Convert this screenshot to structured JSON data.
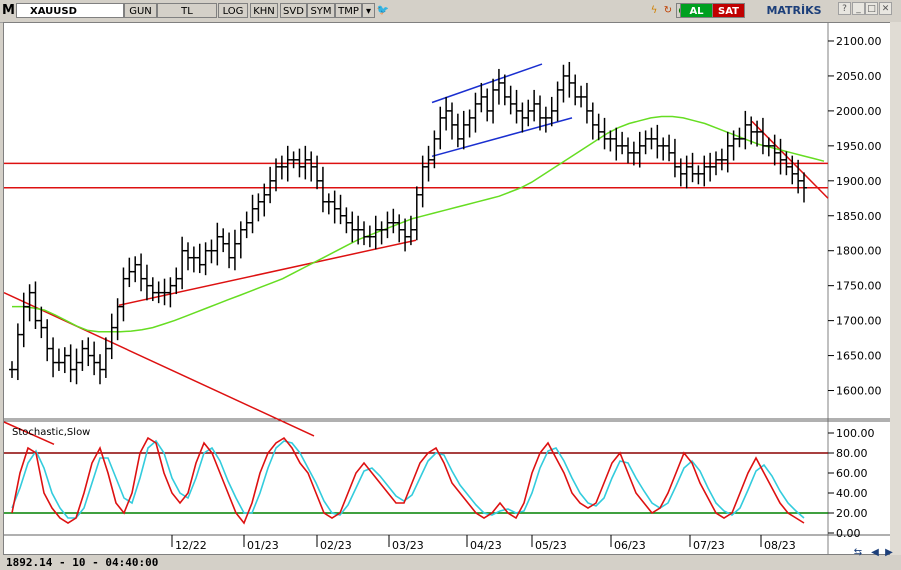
{
  "toolbar": {
    "logo": "M",
    "symbol": "XAUUSD",
    "buttons": [
      "GUN",
      "TL",
      "LOG",
      "KHN",
      "SVD",
      "SYM",
      "TMP"
    ],
    "al": "AL",
    "sat": "SAT",
    "brand": "MATRİKS"
  },
  "status": {
    "cursor_info": "1892.14 - 10 - 04:40:00",
    "colors": {
      "up": "#000000",
      "ma": "#66dd22",
      "trend": "#dd1111",
      "channel": "#1a2fd0",
      "stoch_k": "#dd1111",
      "stoch_d": "#33ccdd",
      "level80": "#8b0000",
      "level20": "#008000"
    }
  },
  "chart_data": [
    {
      "type": "line",
      "subtype": "ohlc-bar",
      "title": "",
      "symbol": "XAUUSD",
      "x_ticks": [
        "12/22",
        "01/23",
        "02/23",
        "03/23",
        "04/23",
        "05/23",
        "06/23",
        "07/23",
        "08/23"
      ],
      "y_ticks": [
        1600,
        1650,
        1700,
        1750,
        1800,
        1850,
        1900,
        1950,
        2000,
        2050,
        2100
      ],
      "ylim": [
        1565,
        2120
      ],
      "series": [
        {
          "close": [
            1630,
            1680,
            1720,
            1740,
            1700,
            1690,
            1660,
            1640,
            1640,
            1650,
            1630,
            1640,
            1660,
            1650,
            1640,
            1630,
            1660,
            1690,
            1720,
            1760,
            1770,
            1780,
            1760,
            1750,
            1740,
            1740,
            1740,
            1750,
            1760,
            1800,
            1790,
            1790,
            1780,
            1800,
            1800,
            1820,
            1810,
            1790,
            1810,
            1830,
            1840,
            1860,
            1870,
            1880,
            1900,
            1920,
            1920,
            1930,
            1930,
            1920,
            1930,
            1920,
            1900,
            1870,
            1870,
            1860,
            1850,
            1840,
            1830,
            1830,
            1820,
            1820,
            1830,
            1830,
            1840,
            1840,
            1830,
            1820,
            1830,
            1880,
            1920,
            1930,
            1960,
            1990,
            2000,
            1980,
            1960,
            1980,
            1990,
            2010,
            2020,
            2000,
            2030,
            2040,
            2020,
            2010,
            2000,
            1990,
            2000,
            2010,
            1990,
            1990,
            2000,
            2030,
            2050,
            2040,
            2020,
            2020,
            2000,
            1980,
            1970,
            1960,
            1960,
            1950,
            1950,
            1940,
            1940,
            1950,
            1960,
            1960,
            1950,
            1950,
            1940,
            1920,
            1910,
            1920,
            1910,
            1910,
            1920,
            1920,
            1930,
            1930,
            1950,
            1960,
            1960,
            1980,
            1970,
            1970,
            1950,
            1950,
            1940,
            1930,
            1920,
            1910,
            1900,
            1890
          ]
        },
        {
          "name": "",
          "values": [
            1720,
            1720,
            1718,
            1715,
            1708,
            1700,
            1692,
            1686,
            1684,
            1684,
            1684,
            1685,
            1687,
            1690,
            1695,
            1700,
            1706,
            1712,
            1718,
            1724,
            1730,
            1736,
            1742,
            1748,
            1754,
            1760,
            1768,
            1776,
            1784,
            1792,
            1800,
            1808,
            1816,
            1822,
            1828,
            1834,
            1840,
            1846,
            1850,
            1854,
            1858,
            1862,
            1866,
            1870,
            1874,
            1878,
            1884,
            1890,
            1898,
            1908,
            1918,
            1928,
            1938,
            1948,
            1958,
            1968,
            1976,
            1982,
            1986,
            1990,
            1992,
            1992,
            1990,
            1986,
            1982,
            1976,
            1970,
            1964,
            1958,
            1952,
            1948,
            1944,
            1940,
            1936,
            1932,
            1928
          ]
        }
      ]
    },
    {
      "type": "line",
      "title": "Stochastic,Slow",
      "y_ticks": [
        0,
        20,
        40,
        60,
        80,
        100
      ],
      "ylim": [
        0,
        110
      ],
      "levels": [
        20,
        80
      ],
      "series": [
        {
          "values": [
            20,
            60,
            85,
            80,
            40,
            25,
            15,
            10,
            15,
            40,
            70,
            85,
            60,
            30,
            20,
            40,
            80,
            95,
            90,
            60,
            40,
            30,
            40,
            70,
            90,
            80,
            60,
            40,
            20,
            10,
            30,
            60,
            80,
            90,
            95,
            85,
            70,
            60,
            40,
            20,
            15,
            20,
            40,
            60,
            70,
            60,
            50,
            40,
            30,
            30,
            50,
            70,
            80,
            85,
            70,
            50,
            40,
            30,
            20,
            15,
            20,
            30,
            20,
            15,
            30,
            60,
            80,
            90,
            75,
            60,
            40,
            30,
            25,
            30,
            50,
            70,
            80,
            60,
            40,
            30,
            20,
            25,
            40,
            60,
            80,
            70,
            50,
            35,
            20,
            15,
            20,
            40,
            60,
            75,
            60,
            45,
            30,
            20,
            15,
            10
          ]
        },
        {
          "values": [
            25,
            45,
            70,
            82,
            65,
            40,
            25,
            15,
            15,
            25,
            50,
            75,
            75,
            55,
            35,
            30,
            55,
            85,
            92,
            80,
            55,
            40,
            35,
            55,
            80,
            85,
            72,
            52,
            35,
            20,
            20,
            40,
            65,
            85,
            92,
            90,
            80,
            65,
            50,
            32,
            20,
            18,
            28,
            45,
            62,
            65,
            57,
            47,
            37,
            32,
            38,
            55,
            72,
            80,
            78,
            62,
            48,
            38,
            28,
            20,
            18,
            22,
            24,
            20,
            22,
            40,
            65,
            82,
            85,
            72,
            55,
            40,
            30,
            27,
            35,
            55,
            72,
            70,
            55,
            42,
            30,
            25,
            30,
            47,
            65,
            72,
            62,
            45,
            30,
            22,
            18,
            25,
            43,
            62,
            68,
            57,
            42,
            30,
            22,
            15
          ]
        }
      ]
    }
  ]
}
